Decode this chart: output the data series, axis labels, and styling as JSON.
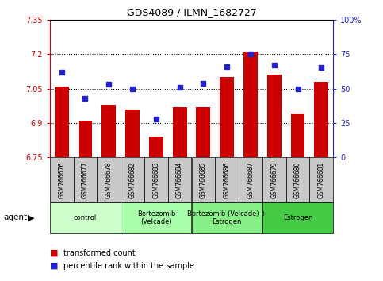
{
  "title": "GDS4089 / ILMN_1682727",
  "samples": [
    "GSM766676",
    "GSM766677",
    "GSM766678",
    "GSM766682",
    "GSM766683",
    "GSM766684",
    "GSM766685",
    "GSM766686",
    "GSM766687",
    "GSM766679",
    "GSM766680",
    "GSM766681"
  ],
  "bar_values": [
    7.06,
    6.91,
    6.98,
    6.96,
    6.84,
    6.97,
    6.97,
    7.1,
    7.21,
    7.11,
    6.94,
    7.08
  ],
  "dot_values": [
    62,
    43,
    53,
    50,
    28,
    51,
    54,
    66,
    75,
    67,
    50,
    65
  ],
  "ylim_left": [
    6.75,
    7.35
  ],
  "ylim_right": [
    0,
    100
  ],
  "yticks_left": [
    6.75,
    6.9,
    7.05,
    7.2,
    7.35
  ],
  "yticks_right": [
    0,
    25,
    50,
    75,
    100
  ],
  "ytick_labels_left": [
    "6.75",
    "6.9",
    "7.05",
    "7.2",
    "7.35"
  ],
  "ytick_labels_right": [
    "0",
    "25",
    "50",
    "75",
    "100%"
  ],
  "bar_color": "#cc0000",
  "dot_color": "#2222cc",
  "groups": [
    {
      "label": "control",
      "start": 0,
      "end": 3,
      "color": "#ccffcc"
    },
    {
      "label": "Bortezomib\n(Velcade)",
      "start": 3,
      "end": 6,
      "color": "#aaffaa"
    },
    {
      "label": "Bortezomib (Velcade) +\nEstrogen",
      "start": 6,
      "end": 9,
      "color": "#88ee88"
    },
    {
      "label": "Estrogen",
      "start": 9,
      "end": 12,
      "color": "#44cc44"
    }
  ],
  "legend_bar_label": "transformed count",
  "legend_dot_label": "percentile rank within the sample",
  "agent_label": "agent",
  "base_value": 6.75,
  "background_color": "#ffffff",
  "tick_area_color": "#c8c8c8",
  "grid_yticks": [
    6.9,
    7.05,
    7.2
  ]
}
